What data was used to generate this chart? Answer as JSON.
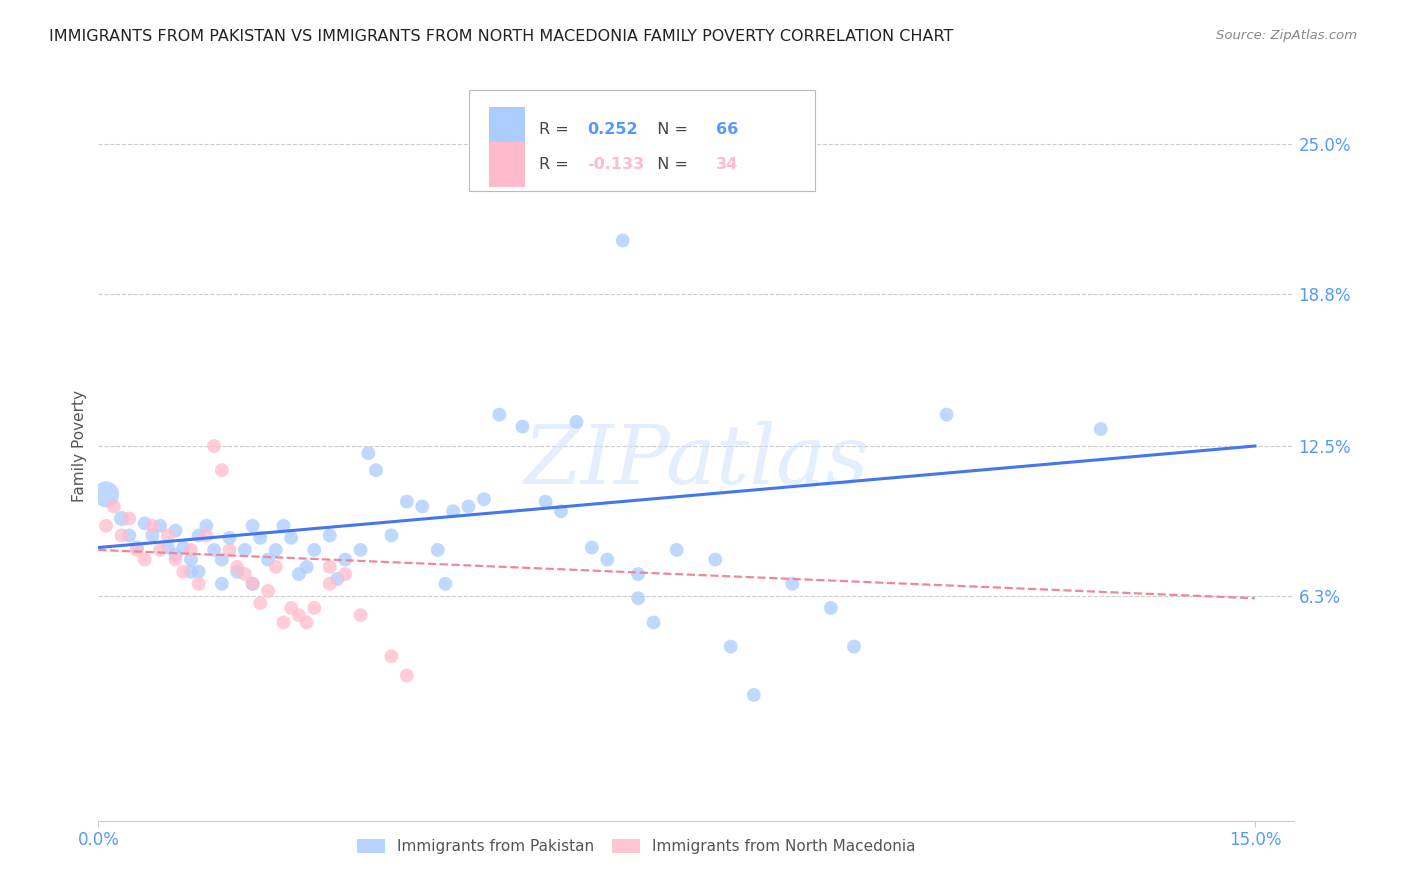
{
  "title": "IMMIGRANTS FROM PAKISTAN VS IMMIGRANTS FROM NORTH MACEDONIA FAMILY POVERTY CORRELATION CHART",
  "source": "Source: ZipAtlas.com",
  "ylabel": "Family Poverty",
  "ytick_labels": [
    "25.0%",
    "18.8%",
    "12.5%",
    "6.3%"
  ],
  "ytick_values": [
    0.25,
    0.188,
    0.125,
    0.063
  ],
  "xtick_labels": [
    "0.0%",
    "15.0%"
  ],
  "xtick_values": [
    0.0,
    0.15
  ],
  "xlim": [
    0.0,
    0.155
  ],
  "ylim": [
    -0.03,
    0.28
  ],
  "background_color": "#ffffff",
  "grid_color": "#cccccc",
  "blue_color": "#aaccff",
  "pink_color": "#ffbbcc",
  "blue_line_color": "#4477ee",
  "pink_line_color": "#ee8899",
  "axis_color": "#5599ff",
  "legend_blue_label": "Immigrants from Pakistan",
  "legend_pink_label": "Immigrants from North Macedonia",
  "R_blue": "0.252",
  "N_blue": "66",
  "R_pink": "-0.133",
  "N_pink": "34",
  "watermark_text": "ZIPatlas",
  "blue_line_x0": 0.0,
  "blue_line_x1": 0.15,
  "blue_line_y0": 0.083,
  "blue_line_y1": 0.125,
  "pink_line_x0": 0.0,
  "pink_line_x1": 0.15,
  "pink_line_y0": 0.082,
  "pink_line_y1": 0.062,
  "blue_points": [
    [
      0.001,
      0.105,
      350
    ],
    [
      0.003,
      0.095,
      120
    ],
    [
      0.004,
      0.088,
      100
    ],
    [
      0.005,
      0.083,
      100
    ],
    [
      0.006,
      0.093,
      100
    ],
    [
      0.007,
      0.088,
      100
    ],
    [
      0.008,
      0.092,
      100
    ],
    [
      0.009,
      0.083,
      100
    ],
    [
      0.01,
      0.08,
      100
    ],
    [
      0.01,
      0.09,
      100
    ],
    [
      0.011,
      0.083,
      100
    ],
    [
      0.012,
      0.078,
      100
    ],
    [
      0.013,
      0.073,
      100
    ],
    [
      0.013,
      0.088,
      100
    ],
    [
      0.014,
      0.092,
      100
    ],
    [
      0.015,
      0.082,
      100
    ],
    [
      0.016,
      0.078,
      100
    ],
    [
      0.017,
      0.087,
      100
    ],
    [
      0.018,
      0.073,
      100
    ],
    [
      0.019,
      0.082,
      100
    ],
    [
      0.02,
      0.092,
      100
    ],
    [
      0.021,
      0.087,
      100
    ],
    [
      0.022,
      0.078,
      100
    ],
    [
      0.023,
      0.082,
      100
    ],
    [
      0.024,
      0.092,
      100
    ],
    [
      0.025,
      0.087,
      100
    ],
    [
      0.026,
      0.072,
      100
    ],
    [
      0.027,
      0.075,
      100
    ],
    [
      0.028,
      0.082,
      100
    ],
    [
      0.03,
      0.088,
      100
    ],
    [
      0.031,
      0.07,
      100
    ],
    [
      0.032,
      0.078,
      100
    ],
    [
      0.034,
      0.082,
      100
    ],
    [
      0.035,
      0.122,
      100
    ],
    [
      0.036,
      0.115,
      100
    ],
    [
      0.038,
      0.088,
      100
    ],
    [
      0.04,
      0.102,
      100
    ],
    [
      0.042,
      0.1,
      100
    ],
    [
      0.044,
      0.082,
      100
    ],
    [
      0.045,
      0.068,
      100
    ],
    [
      0.046,
      0.098,
      100
    ],
    [
      0.048,
      0.1,
      100
    ],
    [
      0.05,
      0.103,
      100
    ],
    [
      0.052,
      0.138,
      100
    ],
    [
      0.055,
      0.133,
      100
    ],
    [
      0.058,
      0.102,
      100
    ],
    [
      0.06,
      0.098,
      100
    ],
    [
      0.062,
      0.135,
      100
    ],
    [
      0.064,
      0.083,
      100
    ],
    [
      0.066,
      0.078,
      100
    ],
    [
      0.07,
      0.072,
      100
    ],
    [
      0.07,
      0.062,
      100
    ],
    [
      0.072,
      0.052,
      100
    ],
    [
      0.075,
      0.082,
      100
    ],
    [
      0.08,
      0.078,
      100
    ],
    [
      0.082,
      0.042,
      100
    ],
    [
      0.085,
      0.022,
      100
    ],
    [
      0.09,
      0.068,
      100
    ],
    [
      0.095,
      0.058,
      100
    ],
    [
      0.098,
      0.042,
      100
    ],
    [
      0.11,
      0.138,
      100
    ],
    [
      0.13,
      0.132,
      100
    ],
    [
      0.068,
      0.21,
      100
    ],
    [
      0.012,
      0.073,
      100
    ],
    [
      0.016,
      0.068,
      100
    ],
    [
      0.02,
      0.068,
      100
    ]
  ],
  "pink_points": [
    [
      0.001,
      0.092,
      100
    ],
    [
      0.002,
      0.1,
      100
    ],
    [
      0.003,
      0.088,
      100
    ],
    [
      0.004,
      0.095,
      100
    ],
    [
      0.005,
      0.082,
      100
    ],
    [
      0.006,
      0.078,
      100
    ],
    [
      0.007,
      0.092,
      100
    ],
    [
      0.008,
      0.082,
      100
    ],
    [
      0.009,
      0.088,
      100
    ],
    [
      0.01,
      0.078,
      100
    ],
    [
      0.011,
      0.073,
      100
    ],
    [
      0.012,
      0.082,
      100
    ],
    [
      0.013,
      0.068,
      100
    ],
    [
      0.014,
      0.088,
      100
    ],
    [
      0.015,
      0.125,
      100
    ],
    [
      0.016,
      0.115,
      100
    ],
    [
      0.017,
      0.082,
      100
    ],
    [
      0.018,
      0.075,
      100
    ],
    [
      0.019,
      0.072,
      100
    ],
    [
      0.02,
      0.068,
      100
    ],
    [
      0.021,
      0.06,
      100
    ],
    [
      0.022,
      0.065,
      100
    ],
    [
      0.023,
      0.075,
      100
    ],
    [
      0.024,
      0.052,
      100
    ],
    [
      0.025,
      0.058,
      100
    ],
    [
      0.026,
      0.055,
      100
    ],
    [
      0.027,
      0.052,
      100
    ],
    [
      0.028,
      0.058,
      100
    ],
    [
      0.03,
      0.068,
      100
    ],
    [
      0.03,
      0.075,
      100
    ],
    [
      0.032,
      0.072,
      100
    ],
    [
      0.034,
      0.055,
      100
    ],
    [
      0.038,
      0.038,
      100
    ],
    [
      0.04,
      0.03,
      100
    ]
  ]
}
